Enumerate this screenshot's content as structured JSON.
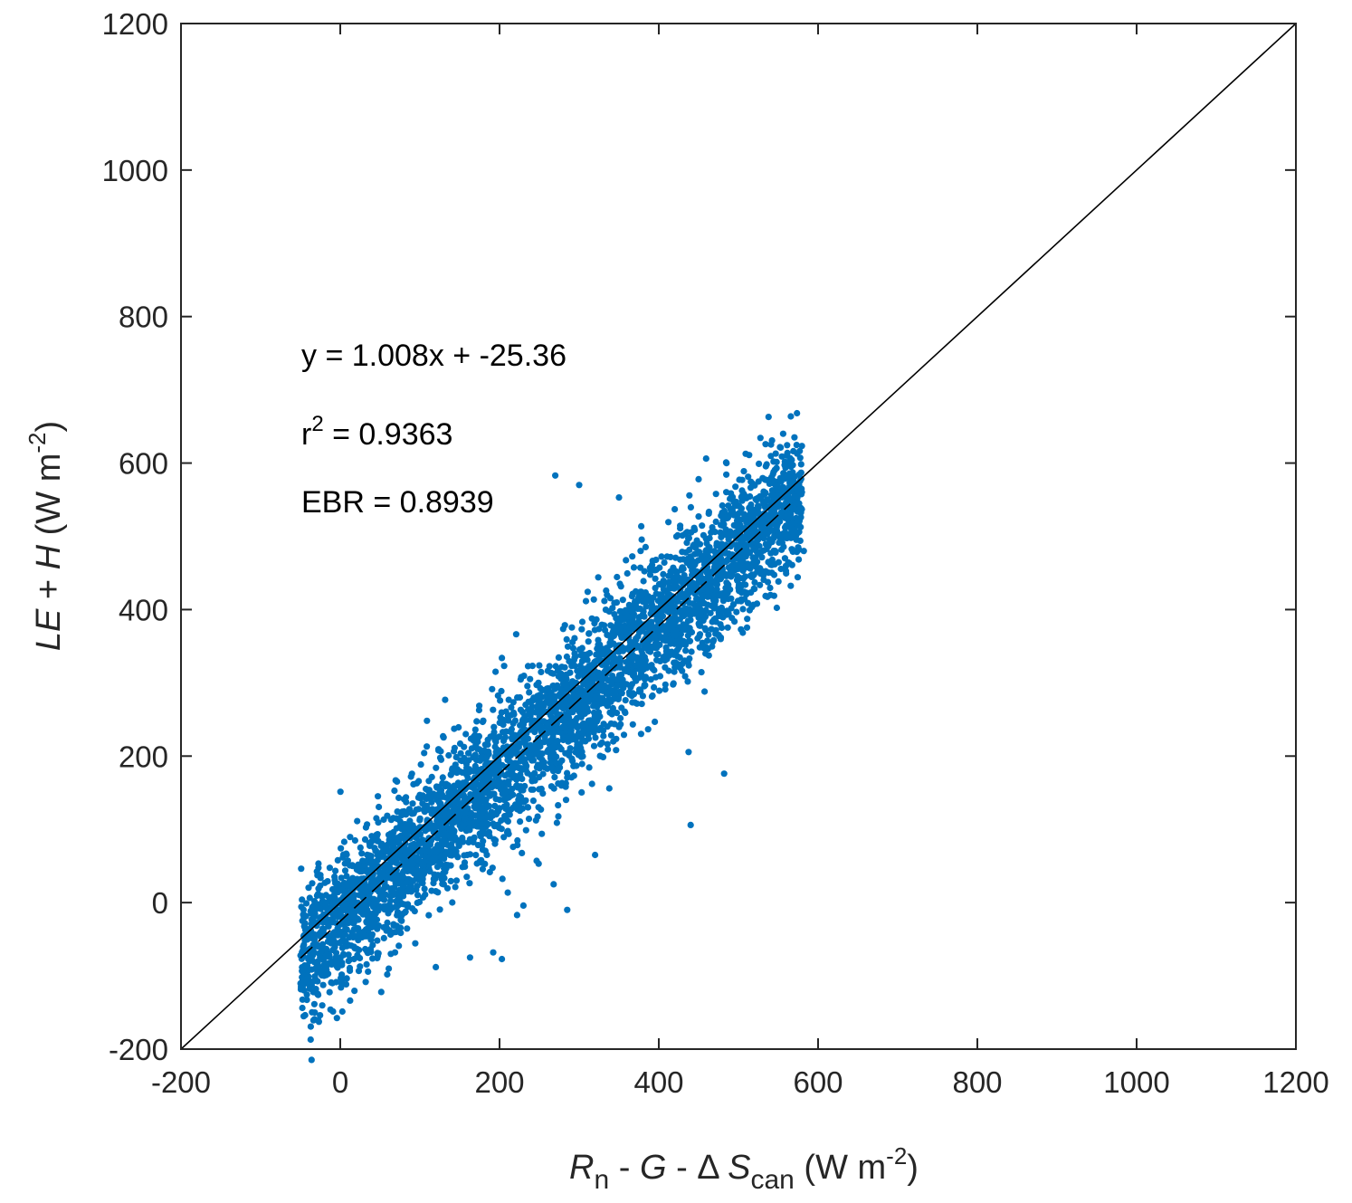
{
  "chart_data": {
    "type": "scatter",
    "xlim": [
      -200,
      1200
    ],
    "ylim": [
      -200,
      1200
    ],
    "x_ticks": [
      "-200",
      "0",
      "200",
      "400",
      "600",
      "800",
      "1000",
      "1200"
    ],
    "y_ticks": [
      "-200",
      "0",
      "200",
      "400",
      "600",
      "800",
      "1000",
      "1200"
    ],
    "xlabel": {
      "parts": [
        {
          "text": "R",
          "style": "italic"
        },
        {
          "text": "n",
          "style": "sub"
        },
        {
          "text": " -  ",
          "style": "normal"
        },
        {
          "text": "G",
          "style": "italic"
        },
        {
          "text": " - Δ ",
          "style": "normal"
        },
        {
          "text": "S",
          "style": "italic"
        },
        {
          "text": "can",
          "style": "sub"
        },
        {
          "text": "  (W m",
          "style": "normal"
        },
        {
          "text": "-2",
          "style": "sup"
        },
        {
          "text": ")",
          "style": "normal"
        }
      ]
    },
    "ylabel": {
      "parts": [
        {
          "text": "LE",
          "style": "italic"
        },
        {
          "text": " +  ",
          "style": "normal"
        },
        {
          "text": "H",
          "style": "italic"
        },
        {
          "text": " (W m",
          "style": "normal"
        },
        {
          "text": "-2",
          "style": "sup"
        },
        {
          "text": ")",
          "style": "normal"
        }
      ]
    },
    "marker_color": "#0072BD",
    "grid": false,
    "one_to_one_line": {
      "from": [
        -200,
        -200
      ],
      "to": [
        1200,
        1200
      ],
      "style": "solid",
      "color": "#000000"
    },
    "fit_line": {
      "slope": 1.008,
      "intercept": -25.36,
      "x_range": [
        -50,
        565
      ],
      "style": "dashed",
      "color": "#000000"
    },
    "annotations": {
      "equation": "y = 1.008x + -25.36",
      "r2_prefix": "r",
      "r2_sup": "2",
      "r2_value": " = 0.9363",
      "ebr": "EBR = 0.8939"
    },
    "cloud": {
      "n_points": 4200,
      "x_range": [
        -50,
        580
      ],
      "residual_std": 45,
      "outliers": [
        [
          482,
          176
        ],
        [
          440,
          106
        ],
        [
          320,
          65
        ],
        [
          268,
          25
        ],
        [
          285,
          -10
        ],
        [
          120,
          -88
        ],
        [
          12,
          -93
        ],
        [
          163,
          -75
        ],
        [
          192,
          -68
        ],
        [
          203,
          -77
        ],
        [
          222,
          -17
        ],
        [
          230,
          -4
        ],
        [
          350,
          553
        ],
        [
          270,
          583
        ],
        [
          300,
          570
        ],
        [
          420,
          537
        ],
        [
          450,
          578
        ],
        [
          485,
          600
        ],
        [
          575,
          505
        ],
        [
          582,
          480
        ]
      ]
    }
  }
}
